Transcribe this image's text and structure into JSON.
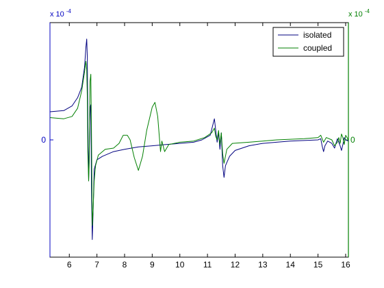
{
  "chart_data": {
    "type": "line",
    "title": "",
    "xlabel": "",
    "ylabel": "",
    "xlim": [
      5.3,
      16.1
    ],
    "ylim": [
      -1,
      1
    ],
    "x_ticks": [
      {
        "value": 6,
        "label": "6"
      },
      {
        "value": 7,
        "label": "7"
      },
      {
        "value": 8,
        "label": "8"
      },
      {
        "value": 9,
        "label": "9"
      },
      {
        "value": 10,
        "label": "10"
      },
      {
        "value": 11,
        "label": "11"
      },
      {
        "value": 12,
        "label": "12"
      },
      {
        "value": 13,
        "label": "13"
      },
      {
        "value": 14,
        "label": "14"
      },
      {
        "value": 15,
        "label": "15"
      },
      {
        "value": 16,
        "label": "16"
      }
    ],
    "left_axis": {
      "color": "#0000c0",
      "scale_base": "x 10",
      "scale_exponent": "-4",
      "tick_label": "0"
    },
    "right_axis": {
      "color": "#007f00",
      "scale_base": "x 10",
      "scale_exponent": "-4",
      "tick_label": "0"
    },
    "grid": false,
    "legend_position": "top-right",
    "series": [
      {
        "name": "isolated",
        "color": "#00007f",
        "points": [
          [
            5.3,
            0.24
          ],
          [
            5.8,
            0.25
          ],
          [
            6.1,
            0.29
          ],
          [
            6.3,
            0.36
          ],
          [
            6.45,
            0.45
          ],
          [
            6.55,
            0.62
          ],
          [
            6.6,
            0.79
          ],
          [
            6.63,
            0.86
          ],
          [
            6.65,
            0.72
          ],
          [
            6.67,
            0.2
          ],
          [
            6.7,
            -0.35
          ],
          [
            6.72,
            -0.12
          ],
          [
            6.74,
            0.15
          ],
          [
            6.76,
            0.28
          ],
          [
            6.78,
            0.3
          ],
          [
            6.8,
            -0.4
          ],
          [
            6.83,
            -0.85
          ],
          [
            6.86,
            -0.62
          ],
          [
            6.9,
            -0.25
          ],
          [
            7.0,
            -0.17
          ],
          [
            7.2,
            -0.14
          ],
          [
            7.6,
            -0.1
          ],
          [
            8.0,
            -0.08
          ],
          [
            8.5,
            -0.06
          ],
          [
            9.0,
            -0.05
          ],
          [
            9.5,
            -0.04
          ],
          [
            10.0,
            -0.03
          ],
          [
            10.5,
            -0.02
          ],
          [
            10.8,
            0.0
          ],
          [
            11.1,
            0.04
          ],
          [
            11.25,
            0.18
          ],
          [
            11.3,
            0.08
          ],
          [
            11.35,
            -0.02
          ],
          [
            11.4,
            0.06
          ],
          [
            11.45,
            -0.08
          ],
          [
            11.5,
            0.06
          ],
          [
            11.55,
            -0.22
          ],
          [
            11.6,
            -0.32
          ],
          [
            11.65,
            -0.22
          ],
          [
            11.8,
            -0.14
          ],
          [
            12.0,
            -0.09
          ],
          [
            12.5,
            -0.05
          ],
          [
            13.0,
            -0.03
          ],
          [
            13.5,
            -0.02
          ],
          [
            14.0,
            -0.01
          ],
          [
            14.5,
            -0.005
          ],
          [
            15.0,
            0.0
          ],
          [
            15.1,
            0.01
          ],
          [
            15.15,
            -0.05
          ],
          [
            15.2,
            -0.1
          ],
          [
            15.25,
            -0.05
          ],
          [
            15.35,
            -0.01
          ],
          [
            15.5,
            -0.03
          ],
          [
            15.6,
            -0.07
          ],
          [
            15.65,
            -0.03
          ],
          [
            15.7,
            0.01
          ],
          [
            15.8,
            -0.05
          ],
          [
            15.85,
            -0.09
          ],
          [
            15.9,
            -0.04
          ],
          [
            15.95,
            0.02
          ],
          [
            16.0,
            0.0
          ],
          [
            16.1,
            -0.01
          ]
        ]
      },
      {
        "name": "coupled",
        "color": "#007f00",
        "points": [
          [
            5.3,
            0.19
          ],
          [
            5.8,
            0.18
          ],
          [
            6.1,
            0.2
          ],
          [
            6.3,
            0.27
          ],
          [
            6.45,
            0.42
          ],
          [
            6.55,
            0.58
          ],
          [
            6.6,
            0.67
          ],
          [
            6.63,
            0.6
          ],
          [
            6.65,
            0.38
          ],
          [
            6.67,
            -0.1
          ],
          [
            6.7,
            -0.35
          ],
          [
            6.72,
            -0.2
          ],
          [
            6.75,
            0.5
          ],
          [
            6.78,
            0.56
          ],
          [
            6.8,
            0.1
          ],
          [
            6.83,
            -0.73
          ],
          [
            6.86,
            -0.6
          ],
          [
            6.9,
            -0.35
          ],
          [
            6.95,
            -0.22
          ],
          [
            7.05,
            -0.13
          ],
          [
            7.3,
            -0.08
          ],
          [
            7.6,
            -0.07
          ],
          [
            7.8,
            -0.03
          ],
          [
            7.95,
            0.04
          ],
          [
            8.1,
            0.04
          ],
          [
            8.2,
            0.0
          ],
          [
            8.35,
            -0.15
          ],
          [
            8.5,
            -0.26
          ],
          [
            8.65,
            -0.14
          ],
          [
            8.8,
            0.08
          ],
          [
            9.0,
            0.28
          ],
          [
            9.1,
            0.32
          ],
          [
            9.2,
            0.2
          ],
          [
            9.3,
            -0.1
          ],
          [
            9.35,
            -0.01
          ],
          [
            9.45,
            -0.1
          ],
          [
            9.6,
            -0.04
          ],
          [
            10.0,
            -0.02
          ],
          [
            10.5,
            -0.01
          ],
          [
            10.9,
            0.02
          ],
          [
            11.15,
            0.06
          ],
          [
            11.25,
            0.1
          ],
          [
            11.3,
            0.03
          ],
          [
            11.35,
            0.0
          ],
          [
            11.4,
            0.08
          ],
          [
            11.45,
            -0.04
          ],
          [
            11.5,
            0.06
          ],
          [
            11.55,
            -0.12
          ],
          [
            11.6,
            -0.2
          ],
          [
            11.7,
            -0.08
          ],
          [
            11.9,
            -0.03
          ],
          [
            12.5,
            -0.02
          ],
          [
            13.0,
            -0.01
          ],
          [
            13.5,
            0.0
          ],
          [
            14.0,
            0.005
          ],
          [
            14.5,
            0.01
          ],
          [
            15.0,
            0.02
          ],
          [
            15.1,
            0.04
          ],
          [
            15.2,
            -0.02
          ],
          [
            15.3,
            0.02
          ],
          [
            15.5,
            0.0
          ],
          [
            15.6,
            -0.05
          ],
          [
            15.7,
            -0.02
          ],
          [
            15.75,
            0.02
          ],
          [
            15.8,
            -0.03
          ],
          [
            15.85,
            0.05
          ],
          [
            15.9,
            0.02
          ],
          [
            15.95,
            -0.04
          ],
          [
            16.0,
            0.04
          ],
          [
            16.1,
            0.0
          ]
        ]
      }
    ]
  }
}
